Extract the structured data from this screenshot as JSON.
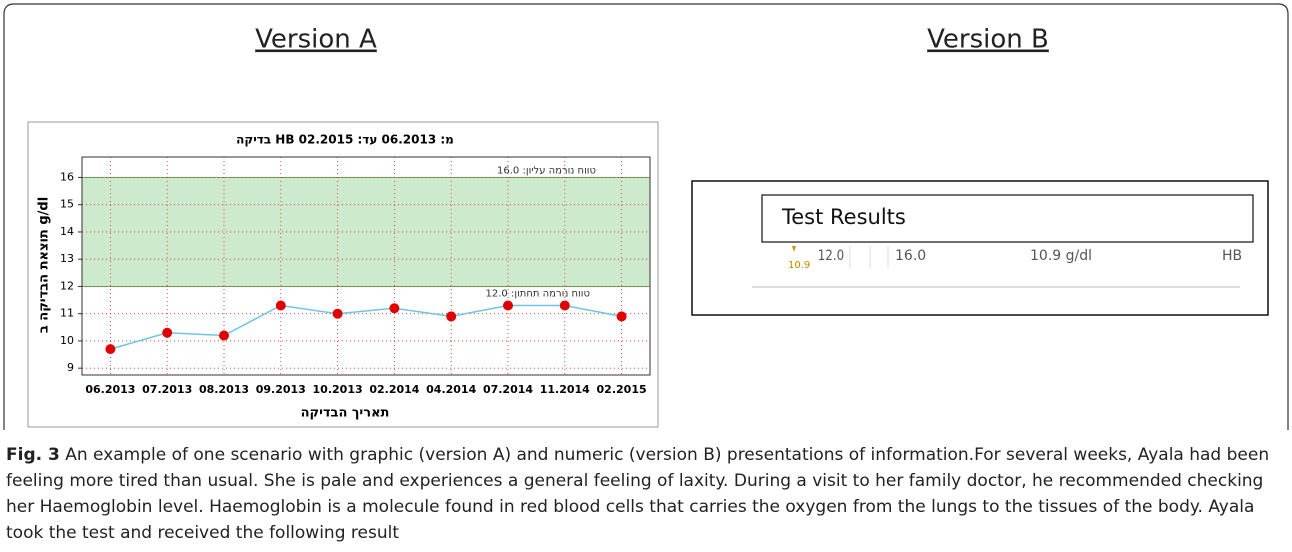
{
  "version_a_title": "Version A",
  "version_b": {
    "title": "Version B",
    "header": "Test Results",
    "flag": "10.9",
    "low": "12.0",
    "high": "16.0",
    "result": "10.9 g/dl",
    "test": "HB"
  },
  "chart_data": {
    "type": "line",
    "title": "בדיקה HB מ: 06.2013 עד: 02.2015",
    "y_label": "תוצאת הבדיקה ב g/dl",
    "x_label": "תאריך הבדיקה",
    "categories": [
      "06.2013",
      "07.2013",
      "08.2013",
      "09.2013",
      "10.2013",
      "02.2014",
      "04.2014",
      "07.2014",
      "11.2014",
      "02.2015"
    ],
    "values": [
      9.7,
      10.3,
      10.2,
      11.3,
      11.0,
      11.2,
      10.9,
      11.3,
      11.3,
      10.9
    ],
    "line_color": "#6ec6e6",
    "marker_color": "#e00000",
    "ylim": [
      8.75,
      16.75
    ],
    "yticks": [
      9,
      10,
      11,
      12,
      13,
      14,
      15,
      16
    ],
    "grid": true,
    "normal_range": [
      12,
      16
    ],
    "normal_range_color": "#5cb85c",
    "upper_label": "טווח נורמה עליון: 16.0",
    "lower_label": "טווח נורמה תחתון: 12.0"
  },
  "caption": {
    "label": "Fig. 3",
    "text": " An example of one scenario with graphic (version A) and numeric (version B) presentations of information.For several weeks, Ayala had been feeling more tired than usual. She is pale and experiences a general feeling of laxity. During a visit to her family doctor, he recommended checking her Haemoglobin level. Haemoglobin is a molecule found in red blood cells that carries the oxygen from the lungs to the tissues of the body. Ayala took the test and received the following result"
  }
}
